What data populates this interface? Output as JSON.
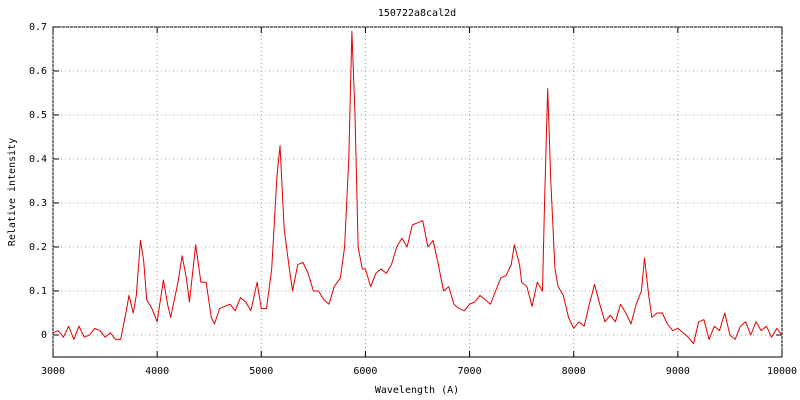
{
  "chart_data": {
    "type": "line",
    "title": "150722a8cal2d",
    "x_label": "Wavelength (A)",
    "y_label": "Relative intensity",
    "x": [
      3000,
      3050,
      3100,
      3150,
      3200,
      3250,
      3300,
      3350,
      3400,
      3450,
      3500,
      3550,
      3600,
      3650,
      3700,
      3730,
      3770,
      3800,
      3840,
      3870,
      3900,
      3950,
      4000,
      4060,
      4100,
      4130,
      4200,
      4240,
      4280,
      4310,
      4370,
      4420,
      4470,
      4520,
      4550,
      4600,
      4700,
      4750,
      4800,
      4850,
      4900,
      4960,
      5000,
      5050,
      5100,
      5150,
      5180,
      5220,
      5270,
      5300,
      5350,
      5400,
      5450,
      5500,
      5550,
      5600,
      5650,
      5700,
      5760,
      5800,
      5840,
      5870,
      5900,
      5930,
      5970,
      6000,
      6050,
      6100,
      6150,
      6200,
      6250,
      6300,
      6350,
      6400,
      6450,
      6500,
      6550,
      6600,
      6650,
      6700,
      6750,
      6800,
      6850,
      6900,
      6950,
      7000,
      7050,
      7100,
      7150,
      7200,
      7250,
      7300,
      7350,
      7400,
      7430,
      7480,
      7500,
      7550,
      7600,
      7650,
      7700,
      7720,
      7750,
      7780,
      7820,
      7850,
      7900,
      7950,
      8000,
      8050,
      8100,
      8150,
      8200,
      8250,
      8300,
      8350,
      8400,
      8450,
      8500,
      8550,
      8600,
      8650,
      8680,
      8720,
      8750,
      8800,
      8850,
      8900,
      8950,
      9000,
      9050,
      9100,
      9150,
      9200,
      9250,
      9300,
      9350,
      9400,
      9450,
      9500,
      9550,
      9600,
      9650,
      9700,
      9750,
      9800,
      9850,
      9900,
      9950,
      10000
    ],
    "series": [
      {
        "color": "#e00000",
        "values": [
          0.005,
          0.01,
          -0.005,
          0.02,
          -0.01,
          0.02,
          -0.005,
          0.0,
          0.015,
          0.01,
          -0.005,
          0.005,
          -0.01,
          -0.01,
          0.05,
          0.09,
          0.05,
          0.09,
          0.215,
          0.17,
          0.08,
          0.06,
          0.03,
          0.125,
          0.07,
          0.04,
          0.12,
          0.18,
          0.13,
          0.075,
          0.205,
          0.12,
          0.12,
          0.04,
          0.025,
          0.06,
          0.07,
          0.055,
          0.085,
          0.075,
          0.055,
          0.12,
          0.06,
          0.06,
          0.15,
          0.36,
          0.43,
          0.24,
          0.15,
          0.1,
          0.16,
          0.165,
          0.14,
          0.1,
          0.1,
          0.08,
          0.07,
          0.11,
          0.13,
          0.2,
          0.4,
          0.69,
          0.5,
          0.2,
          0.15,
          0.15,
          0.11,
          0.14,
          0.15,
          0.14,
          0.16,
          0.2,
          0.22,
          0.2,
          0.25,
          0.255,
          0.26,
          0.2,
          0.215,
          0.16,
          0.1,
          0.11,
          0.07,
          0.06,
          0.055,
          0.07,
          0.075,
          0.09,
          0.08,
          0.07,
          0.1,
          0.13,
          0.135,
          0.16,
          0.205,
          0.16,
          0.12,
          0.11,
          0.065,
          0.12,
          0.1,
          0.3,
          0.56,
          0.35,
          0.15,
          0.11,
          0.09,
          0.04,
          0.015,
          0.03,
          0.02,
          0.07,
          0.115,
          0.07,
          0.03,
          0.045,
          0.03,
          0.07,
          0.05,
          0.025,
          0.07,
          0.1,
          0.175,
          0.09,
          0.04,
          0.05,
          0.05,
          0.025,
          0.01,
          0.015,
          0.005,
          -0.005,
          -0.02,
          0.03,
          0.035,
          -0.01,
          0.02,
          0.01,
          0.05,
          0.0,
          -0.01,
          0.02,
          0.03,
          0.0,
          0.03,
          0.01,
          0.02,
          -0.005,
          0.015,
          0.0
        ]
      }
    ],
    "xlim": [
      3000,
      10000
    ],
    "xticks": [
      3000,
      4000,
      5000,
      6000,
      7000,
      8000,
      9000,
      10000
    ],
    "ylim": [
      -0.05,
      0.7
    ],
    "yticks": [
      0,
      0.1,
      0.2,
      0.3,
      0.4,
      0.5,
      0.6,
      0.7
    ],
    "grid": true
  }
}
